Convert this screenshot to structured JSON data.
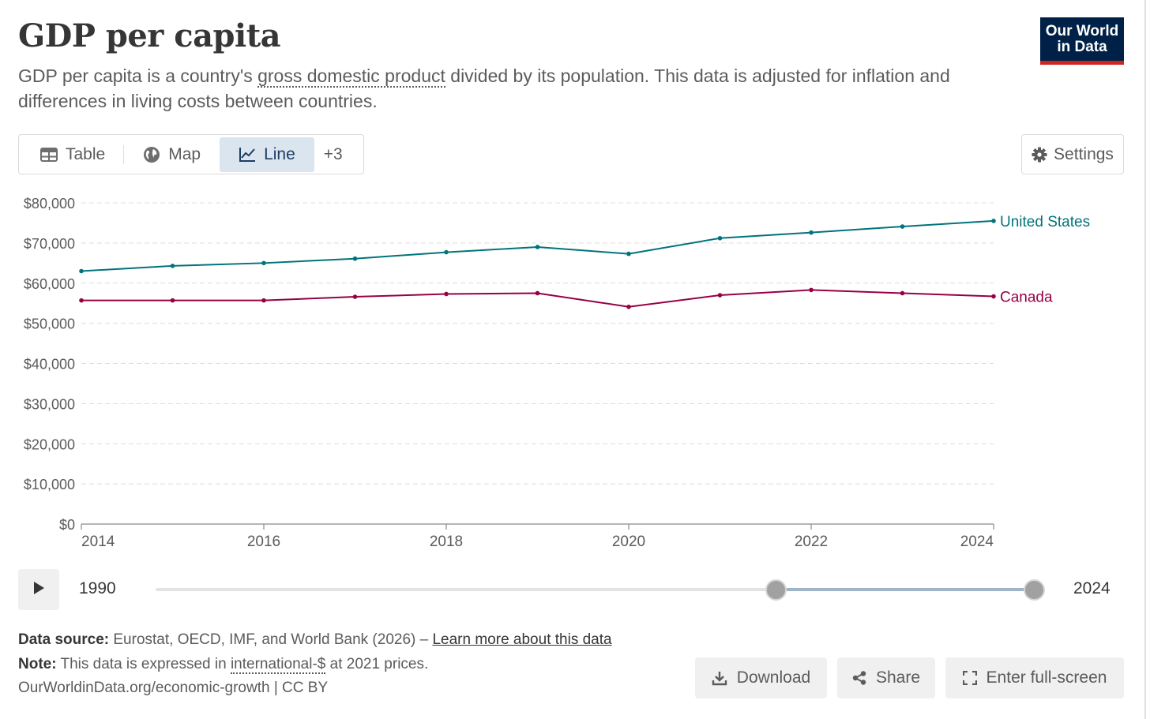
{
  "header": {
    "title": "GDP per capita",
    "subtitle_pre": "GDP per capita is a country's ",
    "subtitle_term": "gross domestic product",
    "subtitle_post": " divided by its population. This data is adjusted for inflation and differences in living costs between countries.",
    "logo_line1": "Our World",
    "logo_line2": "in Data"
  },
  "tabs": [
    {
      "label": "Table",
      "icon": "table-icon",
      "active": false
    },
    {
      "label": "Map",
      "icon": "globe-icon",
      "active": false
    },
    {
      "label": "Line",
      "icon": "line-chart-icon",
      "active": true
    },
    {
      "label": "+3",
      "icon": "",
      "active": false
    }
  ],
  "settings_label": "Settings",
  "chart_data": {
    "type": "line",
    "x": [
      2014,
      2015,
      2016,
      2017,
      2018,
      2019,
      2020,
      2021,
      2022,
      2023,
      2024
    ],
    "series": [
      {
        "name": "United States",
        "color": "#00737c",
        "values": [
          63000,
          64300,
          65000,
          66100,
          67700,
          69000,
          67300,
          71200,
          72600,
          74100,
          75500
        ]
      },
      {
        "name": "Canada",
        "color": "#970046",
        "values": [
          55700,
          55700,
          55700,
          56600,
          57300,
          57500,
          54100,
          57000,
          58300,
          57500,
          56700
        ]
      }
    ],
    "y_ticks": [
      "$0",
      "$10,000",
      "$20,000",
      "$30,000",
      "$40,000",
      "$50,000",
      "$60,000",
      "$70,000",
      "$80,000"
    ],
    "x_ticks": [
      "2014",
      "2016",
      "2018",
      "2020",
      "2022",
      "2024"
    ],
    "ylim": [
      0,
      80000
    ],
    "xlim": [
      2014,
      2024
    ],
    "grid": true,
    "legend": "inline-right"
  },
  "timeline": {
    "start_label": "1990",
    "end_label": "2024",
    "min_year": 1990,
    "max_year": 2024,
    "selected_start": 2014,
    "selected_end": 2024
  },
  "footer": {
    "source_label": "Data source:",
    "source_text": " Eurostat, OECD, IMF, and World Bank (2026) – ",
    "source_link": "Learn more about this data",
    "note_label": "Note:",
    "note_pre": " This data is expressed in ",
    "note_term": "international-$",
    "note_post": " at 2021 prices.",
    "url_text": "OurWorldinData.org/economic-growth | CC BY",
    "download_label": "Download",
    "share_label": "Share",
    "fullscreen_label": "Enter full-screen"
  }
}
